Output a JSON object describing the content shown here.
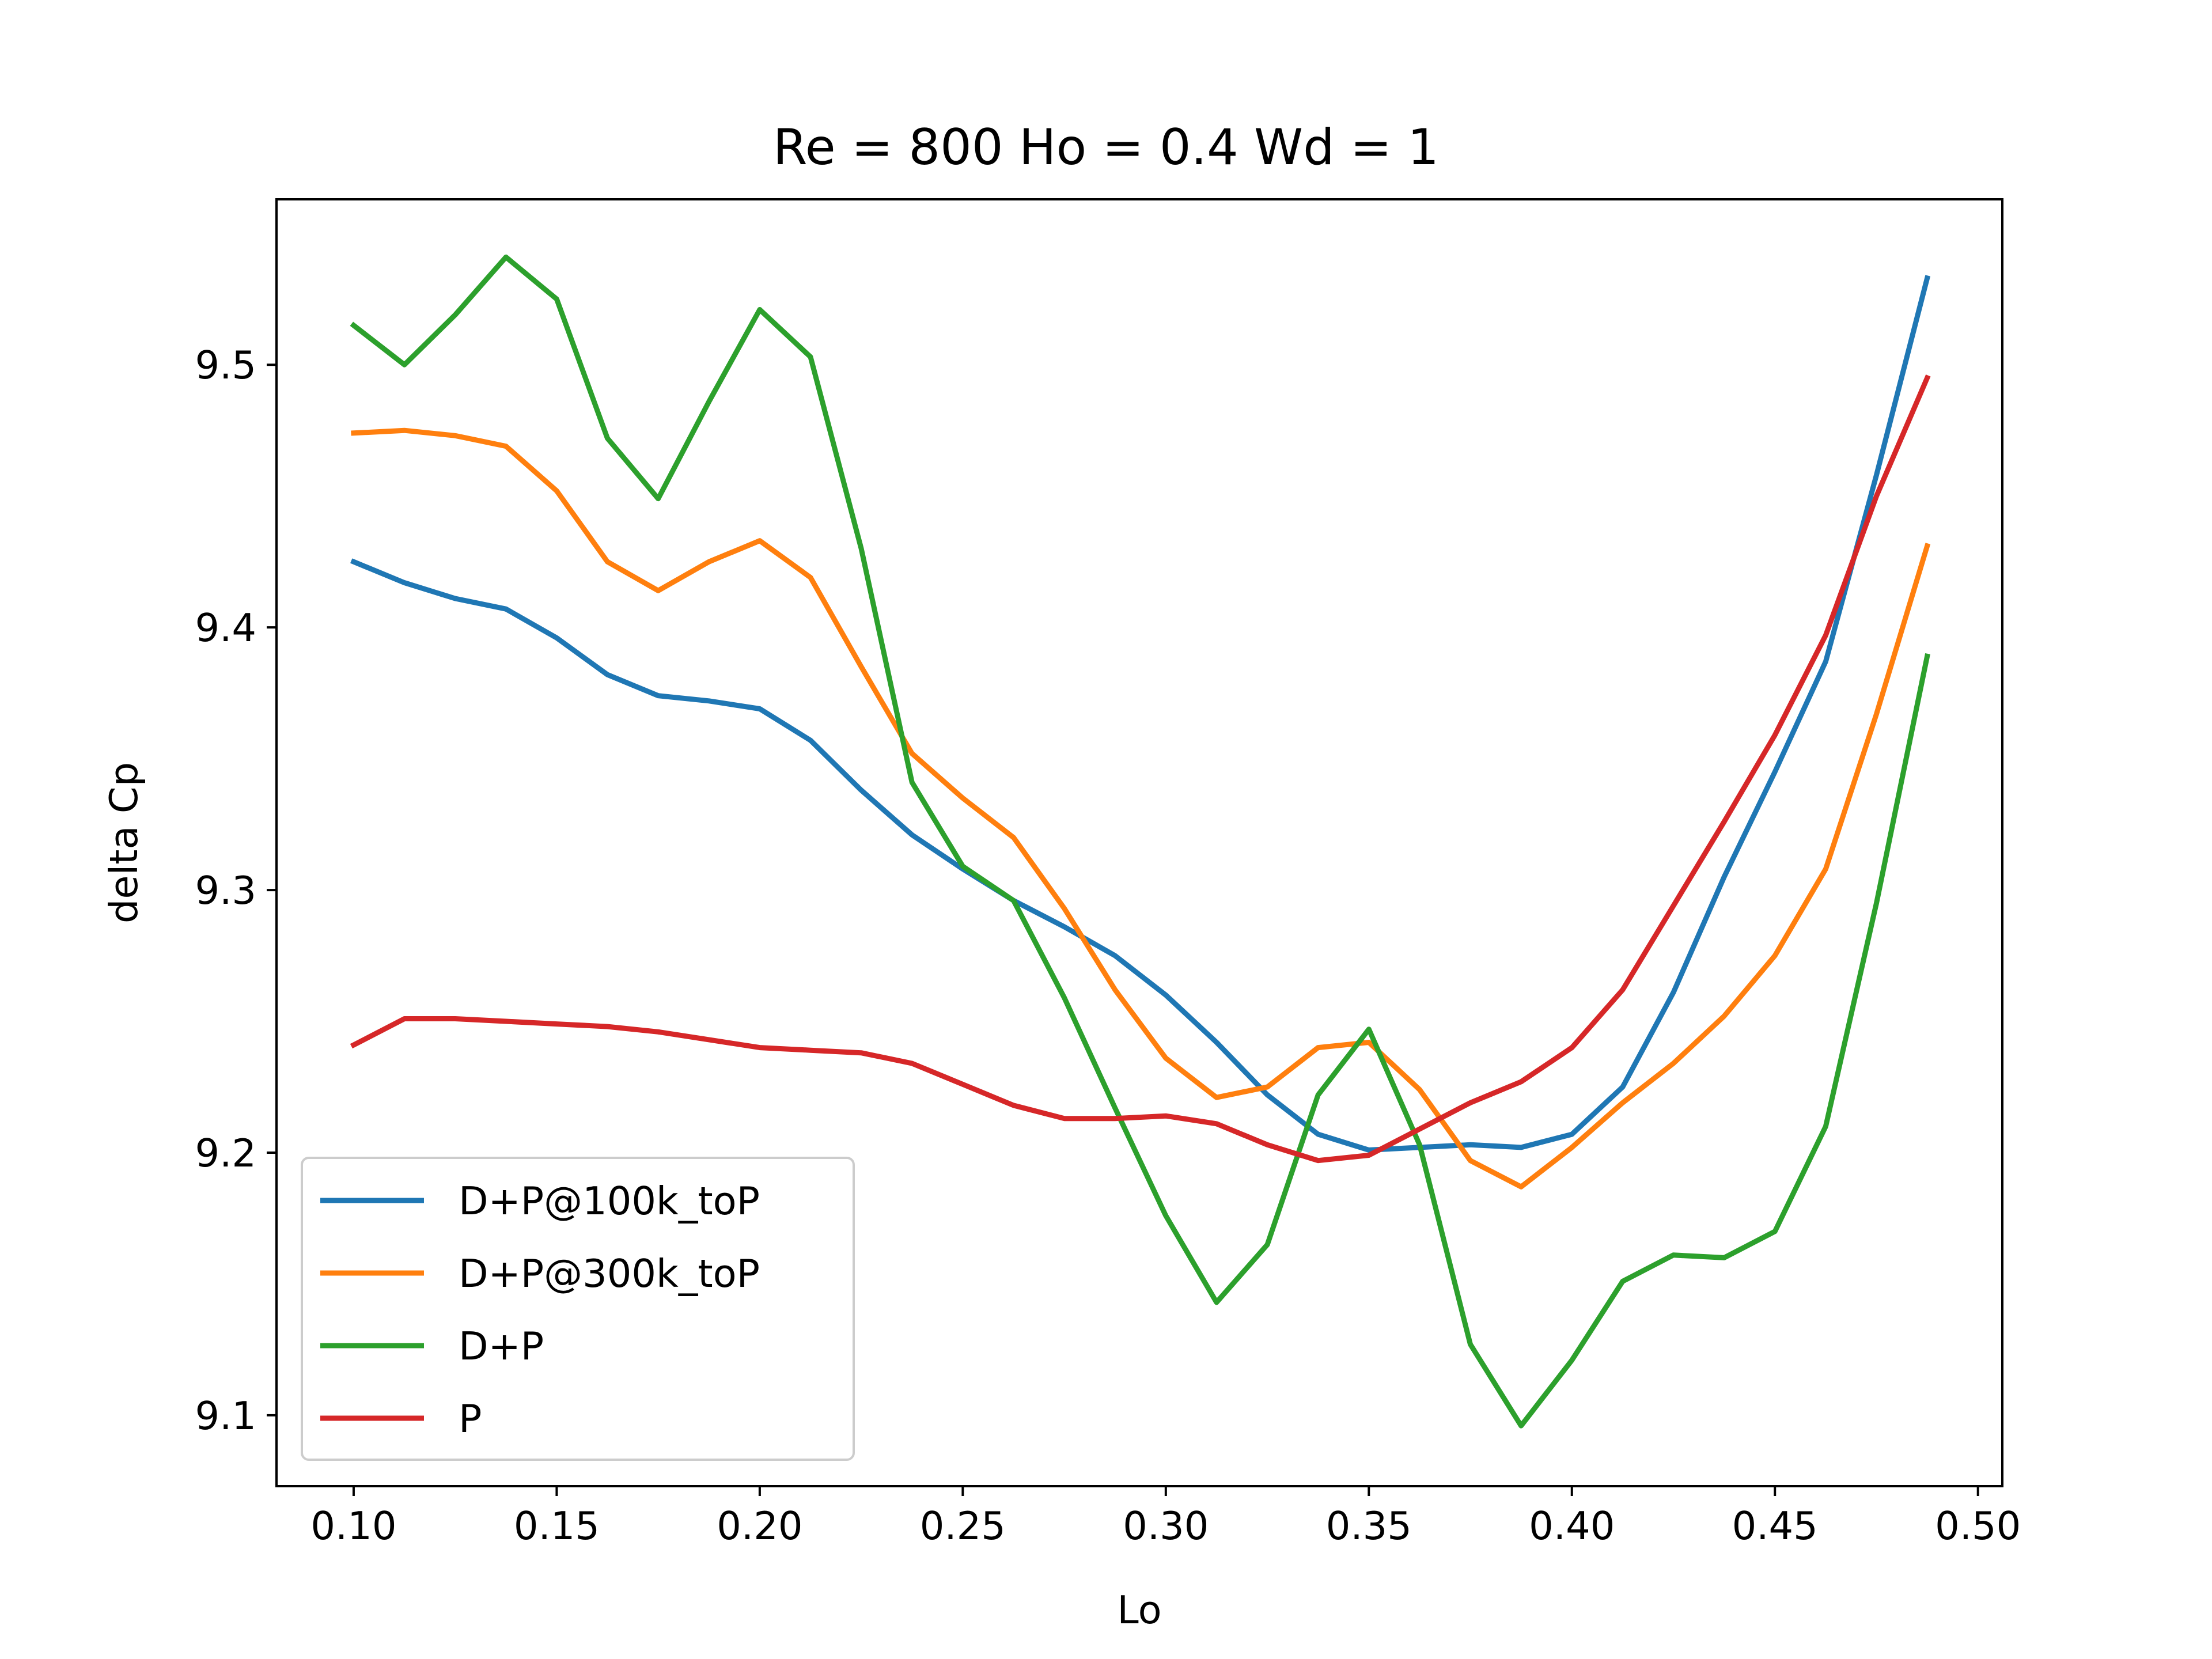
{
  "chart_data": {
    "type": "line",
    "title": "Re = 800 Ho = 0.4 Wd = 1",
    "xlabel": "Lo",
    "ylabel": "delta Cp",
    "xlim": [
      0.081,
      0.506
    ],
    "ylim": [
      9.073,
      9.563
    ],
    "xticks": [
      0.1,
      0.15,
      0.2,
      0.25,
      0.3,
      0.35,
      0.4,
      0.45,
      0.5
    ],
    "xtick_labels": [
      "0.10",
      "0.15",
      "0.20",
      "0.25",
      "0.30",
      "0.35",
      "0.40",
      "0.45",
      "0.50"
    ],
    "yticks": [
      9.1,
      9.2,
      9.3,
      9.4,
      9.5
    ],
    "ytick_labels": [
      "9.1",
      "9.2",
      "9.3",
      "9.4",
      "9.5"
    ],
    "grid": false,
    "legend_position": "lower-left",
    "x": [
      0.1,
      0.1125,
      0.125,
      0.1375,
      0.15,
      0.1625,
      0.175,
      0.1875,
      0.2,
      0.2125,
      0.225,
      0.2375,
      0.25,
      0.2625,
      0.275,
      0.2875,
      0.3,
      0.3125,
      0.325,
      0.3375,
      0.35,
      0.3625,
      0.375,
      0.3875,
      0.4,
      0.4125,
      0.425,
      0.4375,
      0.45,
      0.4625,
      0.475,
      0.4875
    ],
    "series": [
      {
        "name": "D+P@100k_toP",
        "color": "#1f77b4",
        "values": [
          9.425,
          9.417,
          9.411,
          9.407,
          9.396,
          9.382,
          9.374,
          9.372,
          9.369,
          9.357,
          9.338,
          9.321,
          9.308,
          9.296,
          9.286,
          9.275,
          9.26,
          9.242,
          9.222,
          9.207,
          9.201,
          9.202,
          9.203,
          9.202,
          9.207,
          9.225,
          9.261,
          9.305,
          9.345,
          9.387,
          9.458,
          9.533
        ]
      },
      {
        "name": "D+P@300k_toP",
        "color": "#ff7f0e",
        "values": [
          9.474,
          9.475,
          9.473,
          9.469,
          9.452,
          9.425,
          9.414,
          9.425,
          9.433,
          9.419,
          9.385,
          9.352,
          9.335,
          9.32,
          9.293,
          9.262,
          9.236,
          9.221,
          9.225,
          9.24,
          9.242,
          9.224,
          9.197,
          9.187,
          9.202,
          9.219,
          9.234,
          9.252,
          9.275,
          9.308,
          9.367,
          9.431
        ]
      },
      {
        "name": "D+P",
        "color": "#2ca02c",
        "values": [
          9.515,
          9.5,
          9.519,
          9.541,
          9.525,
          9.472,
          9.449,
          9.486,
          9.521,
          9.503,
          9.43,
          9.341,
          9.309,
          9.296,
          9.259,
          9.217,
          9.176,
          9.143,
          9.165,
          9.222,
          9.247,
          9.203,
          9.127,
          9.096,
          9.121,
          9.151,
          9.161,
          9.16,
          9.17,
          9.21,
          9.295,
          9.389
        ]
      },
      {
        "name": "P",
        "color": "#d62728",
        "values": [
          9.241,
          9.251,
          9.251,
          9.25,
          9.249,
          9.248,
          9.246,
          9.243,
          9.24,
          9.239,
          9.238,
          9.234,
          9.226,
          9.218,
          9.213,
          9.213,
          9.214,
          9.211,
          9.203,
          9.197,
          9.199,
          9.209,
          9.219,
          9.227,
          9.24,
          9.262,
          9.294,
          9.326,
          9.359,
          9.397,
          9.45,
          9.495
        ]
      }
    ]
  }
}
